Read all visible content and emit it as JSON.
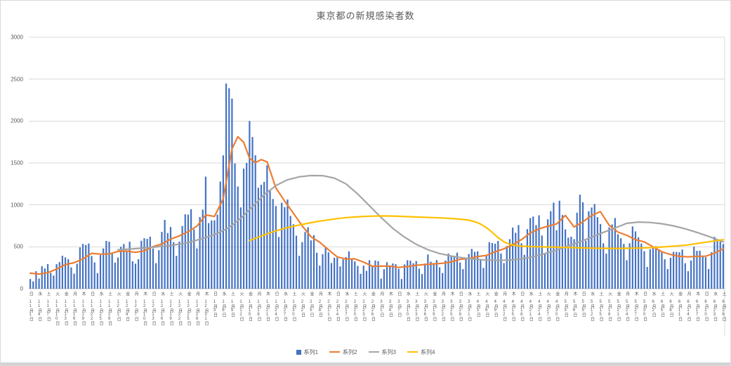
{
  "chart_data": {
    "type": "bar",
    "title": "東京都の新規感染者数",
    "xlabel": "",
    "ylabel": "",
    "ylim": [
      0,
      3000
    ],
    "ytick_interval": 500,
    "y_ticks": [
      "0",
      "500",
      "1000",
      "1500",
      "2000",
      "2500",
      "3000"
    ],
    "grid": true,
    "grid_color": "#d9d9d9",
    "axis_color": "#bfbfbf",
    "text_color": "#595959",
    "legend_position": "bottom",
    "label_every": 3,
    "x_labels": [
      [
        "日",
        11,
        1
      ],
      [
        "水",
        11,
        4
      ],
      [
        "土",
        11,
        7
      ],
      [
        "火",
        11,
        10
      ],
      [
        "金",
        11,
        13
      ],
      [
        "月",
        11,
        16
      ],
      [
        "木",
        11,
        19
      ],
      [
        "日",
        11,
        22
      ],
      [
        "水",
        11,
        25
      ],
      [
        "土",
        11,
        28
      ],
      [
        "火",
        12,
        1
      ],
      [
        "金",
        12,
        4
      ],
      [
        "月",
        12,
        7
      ],
      [
        "木",
        12,
        10
      ],
      [
        "日",
        12,
        13
      ],
      [
        "水",
        12,
        16
      ],
      [
        "土",
        12,
        19
      ],
      [
        "火",
        12,
        22
      ],
      [
        "金",
        12,
        25
      ],
      [
        "月",
        12,
        28
      ],
      [
        "木",
        12,
        31
      ],
      [
        "日",
        1,
        3
      ],
      [
        "水",
        1,
        6
      ],
      [
        "土",
        1,
        9
      ],
      [
        "火",
        1,
        12
      ],
      [
        "金",
        1,
        15
      ],
      [
        "月",
        1,
        18
      ],
      [
        "木",
        1,
        21
      ],
      [
        "日",
        1,
        24
      ],
      [
        "水",
        1,
        27
      ],
      [
        "土",
        1,
        30
      ],
      [
        "火",
        2,
        2
      ],
      [
        "金",
        2,
        5
      ],
      [
        "月",
        2,
        8
      ],
      [
        "木",
        2,
        11
      ],
      [
        "日",
        2,
        14
      ],
      [
        "水",
        2,
        17
      ],
      [
        "土",
        2,
        20
      ],
      [
        "火",
        2,
        23
      ],
      [
        "金",
        2,
        26
      ],
      [
        "月",
        3,
        1
      ],
      [
        "木",
        3,
        4
      ],
      [
        "日",
        3,
        7
      ],
      [
        "水",
        3,
        10
      ],
      [
        "土",
        3,
        13
      ],
      [
        "火",
        3,
        16
      ],
      [
        "金",
        3,
        19
      ],
      [
        "月",
        3,
        22
      ],
      [
        "木",
        3,
        25
      ],
      [
        "日",
        3,
        28
      ],
      [
        "水",
        3,
        31
      ],
      [
        "土",
        4,
        3
      ],
      [
        "火",
        4,
        6
      ],
      [
        "金",
        4,
        9
      ],
      [
        "月",
        4,
        12
      ],
      [
        "木",
        4,
        15
      ],
      [
        "日",
        4,
        18
      ],
      [
        "水",
        4,
        21
      ],
      [
        "土",
        4,
        24
      ],
      [
        "火",
        4,
        27
      ],
      [
        "金",
        4,
        30
      ],
      [
        "月",
        5,
        3
      ],
      [
        "木",
        5,
        6
      ],
      [
        "日",
        5,
        9
      ],
      [
        "水",
        5,
        12
      ],
      [
        "土",
        5,
        15
      ],
      [
        "火",
        5,
        18
      ],
      [
        "金",
        5,
        21
      ],
      [
        "月",
        5,
        24
      ],
      [
        "木",
        5,
        27
      ],
      [
        "日",
        5,
        30
      ],
      [
        "水",
        6,
        2
      ],
      [
        "土",
        6,
        5
      ],
      [
        "火",
        6,
        8
      ],
      [
        "金",
        6,
        11
      ],
      [
        "月",
        6,
        14
      ],
      [
        "木",
        6,
        17
      ],
      [
        "日",
        6,
        20
      ],
      [
        "水",
        6,
        23
      ],
      [
        "土",
        6,
        26
      ]
    ],
    "series": [
      {
        "name": "系列1",
        "type": "bar",
        "color": "#4472C4",
        "values": [
          116,
          87,
          209,
          122,
          269,
          242,
          294,
          189,
          157,
          293,
          317,
          393,
          374,
          352,
          255,
          180,
          298,
          493,
          534,
          522,
          539,
          391,
          314,
          186,
          401,
          481,
          570,
          561,
          418,
          311,
          372,
          500,
          533,
          449,
          561,
          327,
          299,
          352,
          572,
          602,
          595,
          621,
          480,
          305,
          460,
          678,
          821,
          664,
          736,
          556,
          392,
          563,
          748,
          888,
          884,
          949,
          708,
          481,
          856,
          944,
          1337,
          783,
          814,
          816,
          884,
          1278,
          1591,
          2447,
          2392,
          2268,
          1494,
          1219,
          970,
          1433,
          1502,
          2001,
          1809,
          1592,
          1204,
          1240,
          1274,
          1471,
          1175,
          1070,
          986,
          618,
          1026,
          973,
          1064,
          868,
          769,
          633,
          393,
          556,
          676,
          734,
          577,
          639,
          429,
          276,
          412,
          491,
          434,
          307,
          369,
          371,
          266,
          350,
          378,
          445,
          353,
          327,
          272,
          178,
          275,
          213,
          340,
          270,
          337,
          329,
          121,
          232,
          316,
          279,
          301,
          293,
          237,
          116,
          290,
          340,
          335,
          304,
          330,
          239,
          175,
          300,
          409,
          323,
          303,
          342,
          256,
          187,
          337,
          420,
          394,
          376,
          430,
          313,
          234,
          364,
          414,
          475,
          440,
          446,
          355,
          249,
          399,
          555,
          545,
          537,
          570,
          421,
          306,
          510,
          591,
          729,
          667,
          759,
          543,
          405,
          711,
          843,
          861,
          759,
          876,
          635,
          425,
          828,
          925,
          1027,
          698,
          1050,
          879,
          708,
          609,
          621,
          591,
          907,
          1121,
          1032,
          573,
          925,
          969,
          1010,
          854,
          772,
          542,
          419,
          732,
          766,
          843,
          649,
          602,
          535,
          340,
          542,
          743,
          684,
          614,
          539,
          448,
          260,
          471,
          487,
          508,
          472,
          436,
          351,
          235,
          369,
          440,
          439,
          435,
          467,
          304,
          209,
          337,
          501,
          452,
          453,
          388,
          376,
          236,
          435,
          619,
          570,
          562,
          534
        ]
      },
      {
        "name": "系列2",
        "type": "line",
        "color": "#ED7D31",
        "points": [
          [
            0,
            185
          ],
          [
            3,
            175
          ],
          [
            6,
            191
          ],
          [
            9,
            235
          ],
          [
            12,
            288
          ],
          [
            15,
            310
          ],
          [
            18,
            355
          ],
          [
            21,
            422
          ],
          [
            24,
            412
          ],
          [
            27,
            415
          ],
          [
            30,
            445
          ],
          [
            33,
            449
          ],
          [
            36,
            434
          ],
          [
            39,
            452
          ],
          [
            42,
            503
          ],
          [
            45,
            534
          ],
          [
            48,
            592
          ],
          [
            51,
            630
          ],
          [
            54,
            681
          ],
          [
            57,
            746
          ],
          [
            60,
            880
          ],
          [
            63,
            862
          ],
          [
            66,
            1072
          ],
          [
            69,
            1668
          ],
          [
            71,
            1813
          ],
          [
            73,
            1746
          ],
          [
            75,
            1555
          ],
          [
            77,
            1504
          ],
          [
            79,
            1540
          ],
          [
            81,
            1513
          ],
          [
            84,
            1203
          ],
          [
            87,
            1046
          ],
          [
            90,
            901
          ],
          [
            93,
            751
          ],
          [
            96,
            620
          ],
          [
            99,
            555
          ],
          [
            102,
            465
          ],
          [
            105,
            380
          ],
          [
            108,
            354
          ],
          [
            111,
            356
          ],
          [
            114,
            318
          ],
          [
            117,
            268
          ],
          [
            120,
            269
          ],
          [
            123,
            269
          ],
          [
            126,
            254
          ],
          [
            129,
            265
          ],
          [
            132,
            279
          ],
          [
            135,
            289
          ],
          [
            138,
            297
          ],
          [
            141,
            303
          ],
          [
            144,
            320
          ],
          [
            147,
            351
          ],
          [
            150,
            361
          ],
          [
            153,
            384
          ],
          [
            156,
            397
          ],
          [
            159,
            441
          ],
          [
            162,
            476
          ],
          [
            165,
            523
          ],
          [
            168,
            586
          ],
          [
            171,
            665
          ],
          [
            174,
            714
          ],
          [
            177,
            747
          ],
          [
            180,
            773
          ],
          [
            183,
            874
          ],
          [
            186,
            737
          ],
          [
            189,
            798
          ],
          [
            192,
            874
          ],
          [
            195,
            920
          ],
          [
            198,
            757
          ],
          [
            201,
            675
          ],
          [
            204,
            638
          ],
          [
            207,
            585
          ],
          [
            210,
            559
          ],
          [
            213,
            500
          ],
          [
            216,
            440
          ],
          [
            219,
            408
          ],
          [
            222,
            386
          ],
          [
            225,
            380
          ],
          [
            228,
            386
          ],
          [
            231,
            388
          ],
          [
            234,
            423
          ],
          [
            237,
            476
          ]
        ]
      },
      {
        "name": "系列3",
        "type": "line",
        "color": "#A5A5A5",
        "points": [
          [
            30,
            465
          ],
          [
            36,
            478
          ],
          [
            42,
            495
          ],
          [
            48,
            515
          ],
          [
            54,
            550
          ],
          [
            60,
            610
          ],
          [
            64,
            660
          ],
          [
            68,
            730
          ],
          [
            72,
            840
          ],
          [
            76,
            980
          ],
          [
            80,
            1120
          ],
          [
            84,
            1230
          ],
          [
            88,
            1300
          ],
          [
            92,
            1335
          ],
          [
            96,
            1350
          ],
          [
            100,
            1348
          ],
          [
            104,
            1320
          ],
          [
            108,
            1250
          ],
          [
            112,
            1130
          ],
          [
            116,
            990
          ],
          [
            120,
            850
          ],
          [
            124,
            720
          ],
          [
            128,
            615
          ],
          [
            132,
            530
          ],
          [
            136,
            465
          ],
          [
            140,
            420
          ],
          [
            144,
            390
          ],
          [
            148,
            368
          ],
          [
            152,
            352
          ],
          [
            156,
            342
          ],
          [
            160,
            338
          ],
          [
            164,
            342
          ],
          [
            168,
            355
          ],
          [
            172,
            382
          ],
          [
            176,
            420
          ],
          [
            180,
            462
          ],
          [
            184,
            510
          ],
          [
            188,
            560
          ],
          [
            192,
            615
          ],
          [
            196,
            672
          ],
          [
            200,
            725
          ],
          [
            204,
            780
          ],
          [
            208,
            795
          ],
          [
            212,
            790
          ],
          [
            216,
            775
          ],
          [
            220,
            750
          ],
          [
            224,
            715
          ],
          [
            228,
            672
          ],
          [
            232,
            625
          ],
          [
            235,
            585
          ],
          [
            237,
            560
          ]
        ]
      },
      {
        "name": "系列4",
        "type": "line",
        "color": "#FFC000",
        "points": [
          [
            75,
            575
          ],
          [
            78,
            615
          ],
          [
            81,
            655
          ],
          [
            84,
            690
          ],
          [
            87,
            720
          ],
          [
            90,
            745
          ],
          [
            93,
            768
          ],
          [
            96,
            788
          ],
          [
            99,
            806
          ],
          [
            102,
            822
          ],
          [
            105,
            836
          ],
          [
            108,
            848
          ],
          [
            111,
            856
          ],
          [
            114,
            862
          ],
          [
            117,
            866
          ],
          [
            120,
            868
          ],
          [
            123,
            867
          ],
          [
            126,
            864
          ],
          [
            129,
            860
          ],
          [
            132,
            856
          ],
          [
            135,
            852
          ],
          [
            138,
            848
          ],
          [
            141,
            844
          ],
          [
            144,
            838
          ],
          [
            147,
            830
          ],
          [
            150,
            818
          ],
          [
            152,
            800
          ],
          [
            154,
            772
          ],
          [
            156,
            730
          ],
          [
            158,
            672
          ],
          [
            160,
            610
          ],
          [
            162,
            560
          ],
          [
            164,
            530
          ],
          [
            166,
            515
          ],
          [
            168,
            508
          ],
          [
            171,
            503
          ],
          [
            174,
            500
          ],
          [
            177,
            498
          ],
          [
            180,
            496
          ],
          [
            183,
            493
          ],
          [
            186,
            490
          ],
          [
            189,
            487
          ],
          [
            192,
            484
          ],
          [
            195,
            482
          ],
          [
            198,
            481
          ],
          [
            201,
            481
          ],
          [
            204,
            482
          ],
          [
            207,
            484
          ],
          [
            210,
            487
          ],
          [
            213,
            492
          ],
          [
            216,
            498
          ],
          [
            219,
            505
          ],
          [
            222,
            513
          ],
          [
            225,
            522
          ],
          [
            228,
            540
          ],
          [
            231,
            555
          ],
          [
            234,
            570
          ],
          [
            237,
            585
          ]
        ]
      }
    ]
  }
}
